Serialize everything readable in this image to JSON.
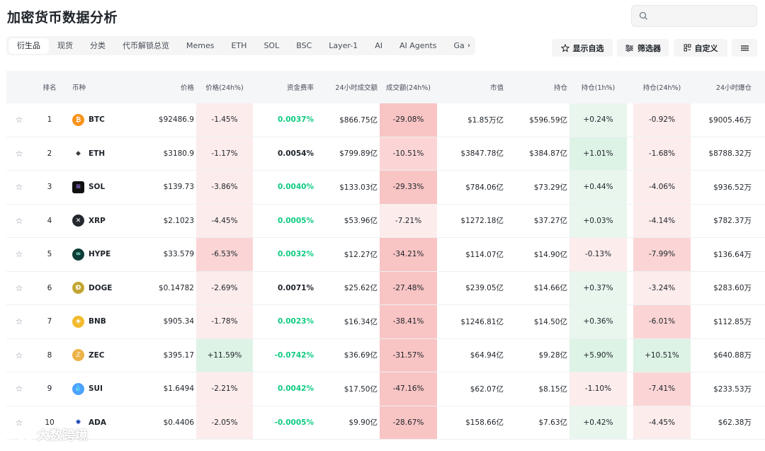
{
  "title": "加密货币数据分析",
  "search": {
    "placeholder": ""
  },
  "tabs": [
    "衍生品",
    "现货",
    "分类",
    "代币解锁总览",
    "Memes",
    "ETH",
    "SOL",
    "BSC",
    "Layer-1",
    "AI",
    "AI Agents",
    "Ga"
  ],
  "toolbar": {
    "watchlist": "显示自选",
    "filter": "筛选器",
    "customize": "自定义"
  },
  "columns": [
    "排名",
    "币种",
    "价格",
    "价格(24h%)",
    "资金费率",
    "24小时成交额",
    "成交额(24h%)",
    "市值",
    "持仓",
    "持仓(1h%)",
    "持仓(24h%)",
    "24小时爆仓"
  ],
  "rows": [
    {
      "rank": "1",
      "symbol": "BTC",
      "icon": "bitcoin-icon",
      "price": "$92486.9",
      "price_24h": "-1.45%",
      "funding": "0.0037%",
      "funding_dir": "pos",
      "volume": "$866.75亿",
      "volume_24h": "-29.08%",
      "mcap": "$1.85万亿",
      "oi": "$596.59亿",
      "oi_1h": "+0.24%",
      "oi_24h": "-0.92%",
      "liq": "$9005.46万"
    },
    {
      "rank": "2",
      "symbol": "ETH",
      "icon": "ethereum-icon",
      "price": "$3180.9",
      "price_24h": "-1.17%",
      "funding": "0.0054%",
      "funding_dir": "neu",
      "volume": "$799.89亿",
      "volume_24h": "-10.51%",
      "mcap": "$3847.78亿",
      "oi": "$384.87亿",
      "oi_1h": "+1.01%",
      "oi_24h": "-1.68%",
      "liq": "$8788.32万"
    },
    {
      "rank": "3",
      "symbol": "SOL",
      "icon": "solana-icon",
      "price": "$139.73",
      "price_24h": "-3.86%",
      "funding": "0.0040%",
      "funding_dir": "pos",
      "volume": "$133.03亿",
      "volume_24h": "-29.33%",
      "mcap": "$784.06亿",
      "oi": "$73.29亿",
      "oi_1h": "+0.44%",
      "oi_24h": "-4.06%",
      "liq": "$936.52万"
    },
    {
      "rank": "4",
      "symbol": "XRP",
      "icon": "xrp-icon",
      "price": "$2.1023",
      "price_24h": "-4.45%",
      "funding": "0.0005%",
      "funding_dir": "pos",
      "volume": "$53.96亿",
      "volume_24h": "-7.21%",
      "mcap": "$1272.18亿",
      "oi": "$37.27亿",
      "oi_1h": "+0.03%",
      "oi_24h": "-4.14%",
      "liq": "$782.37万"
    },
    {
      "rank": "5",
      "symbol": "HYPE",
      "icon": "hyperliquid-icon",
      "price": "$33.579",
      "price_24h": "-6.53%",
      "funding": "0.0032%",
      "funding_dir": "pos",
      "volume": "$12.27亿",
      "volume_24h": "-34.21%",
      "mcap": "$114.07亿",
      "oi": "$14.90亿",
      "oi_1h": "-0.13%",
      "oi_24h": "-7.99%",
      "liq": "$136.64万"
    },
    {
      "rank": "6",
      "symbol": "DOGE",
      "icon": "dogecoin-icon",
      "price": "$0.14782",
      "price_24h": "-2.69%",
      "funding": "0.0071%",
      "funding_dir": "neu",
      "volume": "$25.62亿",
      "volume_24h": "-27.48%",
      "mcap": "$239.05亿",
      "oi": "$14.66亿",
      "oi_1h": "+0.37%",
      "oi_24h": "-3.24%",
      "liq": "$283.60万"
    },
    {
      "rank": "7",
      "symbol": "BNB",
      "icon": "bnb-icon",
      "price": "$905.34",
      "price_24h": "-1.78%",
      "funding": "0.0023%",
      "funding_dir": "pos",
      "volume": "$16.34亿",
      "volume_24h": "-38.41%",
      "mcap": "$1246.81亿",
      "oi": "$14.50亿",
      "oi_1h": "+0.36%",
      "oi_24h": "-6.01%",
      "liq": "$112.85万"
    },
    {
      "rank": "8",
      "symbol": "ZEC",
      "icon": "zcash-icon",
      "price": "$395.17",
      "price_24h": "+11.59%",
      "funding": "-0.0742%",
      "funding_dir": "pos",
      "volume": "$36.69亿",
      "volume_24h": "-31.57%",
      "mcap": "$64.94亿",
      "oi": "$9.28亿",
      "oi_1h": "+5.90%",
      "oi_24h": "+10.51%",
      "liq": "$640.88万"
    },
    {
      "rank": "9",
      "symbol": "SUI",
      "icon": "sui-icon",
      "price": "$1.6494",
      "price_24h": "-2.21%",
      "funding": "0.0042%",
      "funding_dir": "pos",
      "volume": "$17.50亿",
      "volume_24h": "-47.16%",
      "mcap": "$62.07亿",
      "oi": "$8.15亿",
      "oi_1h": "-1.10%",
      "oi_24h": "-7.41%",
      "liq": "$233.53万"
    },
    {
      "rank": "10",
      "symbol": "ADA",
      "icon": "cardano-icon",
      "price": "$0.4406",
      "price_24h": "-2.05%",
      "funding": "-0.0005%",
      "funding_dir": "pos",
      "volume": "$9.90亿",
      "volume_24h": "-28.67%",
      "mcap": "$158.66亿",
      "oi": "$7.63亿",
      "oi_1h": "+0.42%",
      "oi_24h": "-4.45%",
      "liq": "$62.38万"
    }
  ],
  "colors": {
    "positive_text": "#0ecb81",
    "heat_red_light": "#fdecec",
    "heat_red_mid": "#fbd5d5",
    "heat_red_strong": "#f8c4c4",
    "heat_green_light": "#e8f6ee",
    "heat_green_mid": "#ddf3e5"
  },
  "watermark": "大数跨境"
}
